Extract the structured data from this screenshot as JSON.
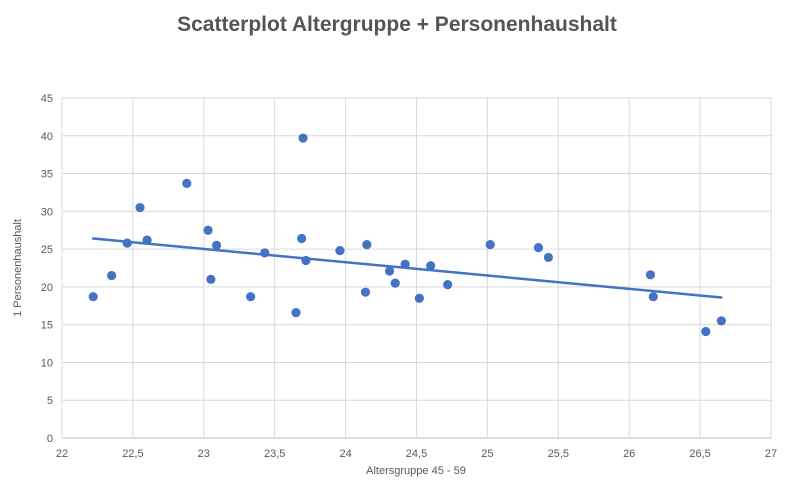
{
  "chart_data": {
    "type": "scatter",
    "title": "Scatterplot Altergruppe + Personenhaushalt",
    "xlabel": "Altersgruppe 45 - 59",
    "ylabel": "1 Personenhaushalt",
    "xlim": [
      22,
      27
    ],
    "ylim": [
      0,
      45
    ],
    "x_ticks": [
      "22",
      "22,5",
      "23",
      "23,5",
      "24",
      "24,5",
      "25",
      "25,5",
      "26",
      "26,5",
      "27"
    ],
    "y_ticks": [
      "0",
      "5",
      "10",
      "15",
      "20",
      "25",
      "30",
      "35",
      "40",
      "45"
    ],
    "grid": true,
    "legend": "none",
    "marker_color": "#4472c4",
    "trendline_color": "#4472c4",
    "points": [
      {
        "x": 22.22,
        "y": 18.7
      },
      {
        "x": 22.35,
        "y": 21.5
      },
      {
        "x": 22.46,
        "y": 25.8
      },
      {
        "x": 22.55,
        "y": 30.5
      },
      {
        "x": 22.6,
        "y": 26.2
      },
      {
        "x": 22.88,
        "y": 33.7
      },
      {
        "x": 23.03,
        "y": 27.5
      },
      {
        "x": 23.05,
        "y": 21.0
      },
      {
        "x": 23.09,
        "y": 25.5
      },
      {
        "x": 23.33,
        "y": 18.7
      },
      {
        "x": 23.43,
        "y": 24.5
      },
      {
        "x": 23.65,
        "y": 16.6
      },
      {
        "x": 23.69,
        "y": 26.4
      },
      {
        "x": 23.7,
        "y": 39.7
      },
      {
        "x": 23.72,
        "y": 23.5
      },
      {
        "x": 23.96,
        "y": 24.8
      },
      {
        "x": 24.14,
        "y": 19.3
      },
      {
        "x": 24.15,
        "y": 25.6
      },
      {
        "x": 24.31,
        "y": 22.1
      },
      {
        "x": 24.35,
        "y": 20.5
      },
      {
        "x": 24.42,
        "y": 23.0
      },
      {
        "x": 24.52,
        "y": 18.5
      },
      {
        "x": 24.6,
        "y": 22.8
      },
      {
        "x": 24.72,
        "y": 20.3
      },
      {
        "x": 25.02,
        "y": 25.6
      },
      {
        "x": 25.36,
        "y": 25.2
      },
      {
        "x": 25.43,
        "y": 23.9
      },
      {
        "x": 26.15,
        "y": 21.6
      },
      {
        "x": 26.17,
        "y": 18.7
      },
      {
        "x": 26.54,
        "y": 14.1
      },
      {
        "x": 26.65,
        "y": 15.5
      }
    ],
    "trendline": {
      "x": [
        22.22,
        26.65
      ],
      "y": [
        26.4,
        18.6
      ]
    }
  }
}
